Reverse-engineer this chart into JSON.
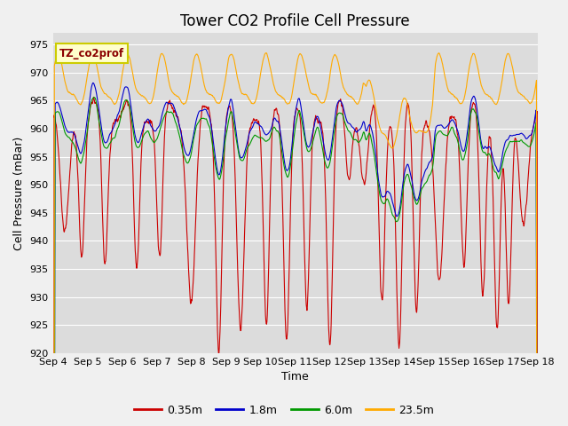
{
  "title": "Tower CO2 Profile Cell Pressure",
  "ylabel": "Cell Pressure (mBar)",
  "xlabel": "Time",
  "ylim": [
    920,
    977
  ],
  "xlim": [
    0,
    336
  ],
  "legend_label": "TZ_co2prof",
  "colors": {
    "red": "#cc0000",
    "blue": "#0000cc",
    "green": "#009900",
    "orange": "#ffaa00"
  },
  "series_labels": [
    "0.35m",
    "1.8m",
    "6.0m",
    "23.5m"
  ],
  "xtick_labels": [
    "Sep 4",
    "Sep 5",
    "Sep 6",
    "Sep 7",
    "Sep 8",
    "Sep 9",
    "Sep 10",
    "Sep 11",
    "Sep 12",
    "Sep 13",
    "Sep 14",
    "Sep 15",
    "Sep 16",
    "Sep 17",
    "Sep 18"
  ],
  "xtick_positions": [
    0,
    24,
    48,
    72,
    96,
    120,
    144,
    168,
    192,
    216,
    240,
    264,
    288,
    312,
    336
  ],
  "plot_bg_color": "#dcdcdc",
  "fig_bg_color": "#f0f0f0",
  "title_fontsize": 12,
  "axis_fontsize": 9,
  "tick_fontsize": 8
}
